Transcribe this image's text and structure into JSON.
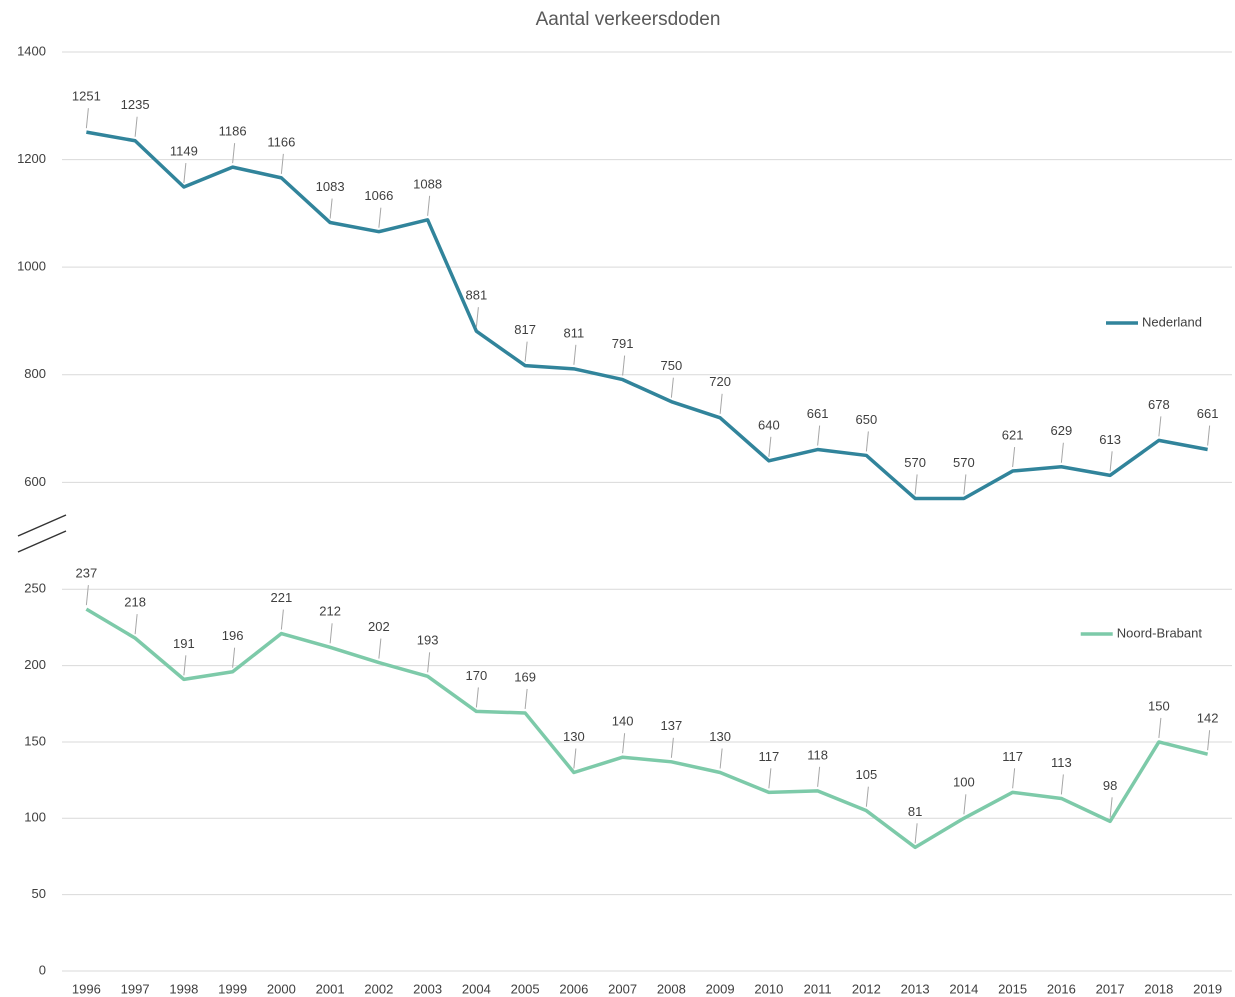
{
  "chart_data": [
    {
      "type": "line",
      "title": "Aantal verkeersdoden",
      "series": [
        {
          "name": "Nederland",
          "color": "#31849b",
          "values": [
            1251,
            1235,
            1149,
            1186,
            1166,
            1083,
            1066,
            1088,
            881,
            817,
            811,
            791,
            750,
            720,
            640,
            661,
            650,
            570,
            570,
            621,
            629,
            613,
            678,
            661
          ]
        }
      ],
      "ylim": [
        530,
        1400
      ],
      "yticks": [
        600,
        800,
        1000,
        1200,
        1400
      ],
      "grid": true,
      "legend": "right"
    },
    {
      "type": "line",
      "categories": [
        "1996",
        "1997",
        "1998",
        "1999",
        "2000",
        "2001",
        "2002",
        "2003",
        "2004",
        "2005",
        "2006",
        "2007",
        "2008",
        "2009",
        "2010",
        "2011",
        "2012",
        "2013",
        "2014",
        "2015",
        "2016",
        "2017",
        "2018",
        "2019"
      ],
      "series": [
        {
          "name": "Noord-Brabant",
          "color": "#7dcaa9",
          "values": [
            237,
            218,
            191,
            196,
            221,
            212,
            202,
            193,
            170,
            169,
            130,
            140,
            137,
            130,
            117,
            118,
            105,
            81,
            100,
            117,
            113,
            98,
            150,
            142
          ]
        }
      ],
      "ylim": [
        0,
        260
      ],
      "yticks": [
        0,
        50,
        100,
        150,
        200,
        250
      ],
      "grid": true,
      "legend": "right"
    }
  ]
}
